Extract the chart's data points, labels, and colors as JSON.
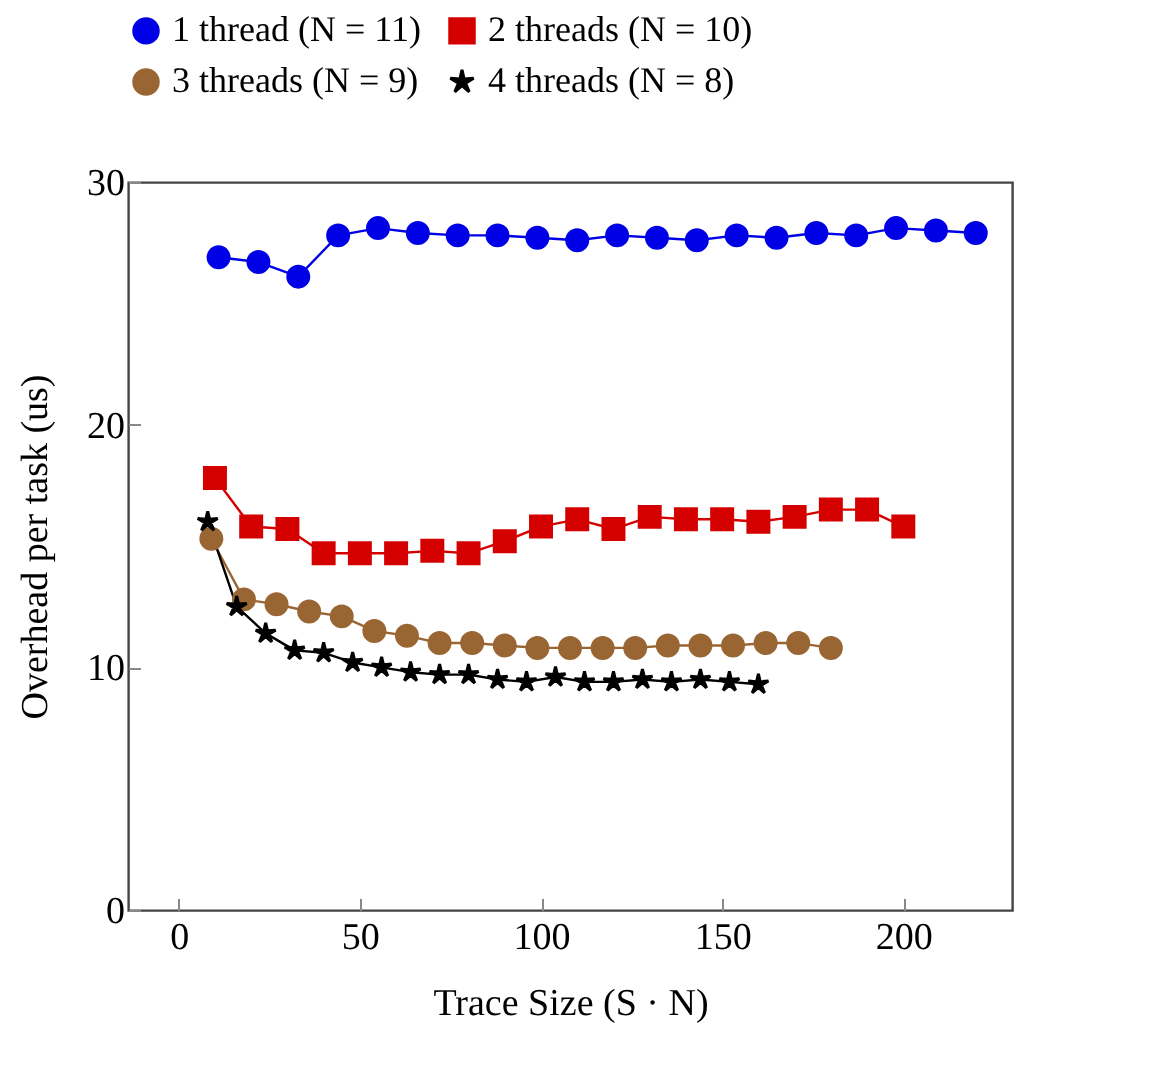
{
  "chart_data": {
    "type": "line",
    "xlabel": "Trace Size (S · N)",
    "ylabel": "Overhead per task (us)",
    "xlim": [
      -14,
      230
    ],
    "xticks": [
      0,
      50,
      100,
      150,
      200
    ],
    "ylim": [
      0,
      30
    ],
    "yticks": [
      0,
      10,
      20,
      30
    ],
    "grid": false,
    "legend": "top",
    "line_style": "solid",
    "series": [
      {
        "name": "1 thread (N = 11)",
        "color": "#0000e6",
        "marker": "circle",
        "x": [
          11,
          22,
          33,
          44,
          55,
          66,
          77,
          88,
          99,
          110,
          121,
          132,
          143,
          154,
          165,
          176,
          187,
          198,
          209,
          220
        ],
        "values": [
          26.9,
          26.7,
          26.1,
          27.8,
          28.1,
          27.9,
          27.8,
          27.8,
          27.7,
          27.6,
          27.8,
          27.7,
          27.6,
          27.8,
          27.7,
          27.9,
          27.8,
          28.1,
          28.0,
          27.9
        ]
      },
      {
        "name": "2 threads (N = 10)",
        "color": "#d40000",
        "marker": "square",
        "x": [
          10,
          20,
          30,
          40,
          50,
          60,
          70,
          80,
          90,
          100,
          110,
          120,
          130,
          140,
          150,
          160,
          170,
          180,
          190,
          200
        ],
        "values": [
          17.8,
          15.8,
          15.7,
          14.7,
          14.7,
          14.7,
          14.8,
          14.7,
          15.2,
          15.8,
          16.1,
          15.7,
          16.2,
          16.1,
          16.1,
          16.0,
          16.2,
          16.5,
          16.5,
          15.8
        ]
      },
      {
        "name": "3 threads (N = 9)",
        "color": "#996633",
        "marker": "circle",
        "x": [
          9,
          18,
          27,
          36,
          45,
          54,
          63,
          72,
          81,
          90,
          99,
          108,
          117,
          126,
          135,
          144,
          153,
          162,
          171,
          180
        ],
        "values": [
          15.3,
          12.8,
          12.6,
          12.3,
          12.1,
          11.5,
          11.3,
          11.0,
          11.0,
          10.9,
          10.8,
          10.8,
          10.8,
          10.8,
          10.9,
          10.9,
          10.9,
          11.0,
          11.0,
          10.8
        ]
      },
      {
        "name": "4 threads (N = 8)",
        "color": "#000000",
        "marker": "star",
        "x": [
          8,
          16,
          24,
          32,
          40,
          48,
          56,
          64,
          72,
          80,
          88,
          96,
          104,
          112,
          120,
          128,
          136,
          144,
          152,
          160
        ],
        "values": [
          16.0,
          12.5,
          11.4,
          10.7,
          10.6,
          10.2,
          10.0,
          9.8,
          9.7,
          9.7,
          9.5,
          9.4,
          9.6,
          9.4,
          9.4,
          9.5,
          9.4,
          9.5,
          9.4,
          9.3
        ]
      }
    ]
  }
}
